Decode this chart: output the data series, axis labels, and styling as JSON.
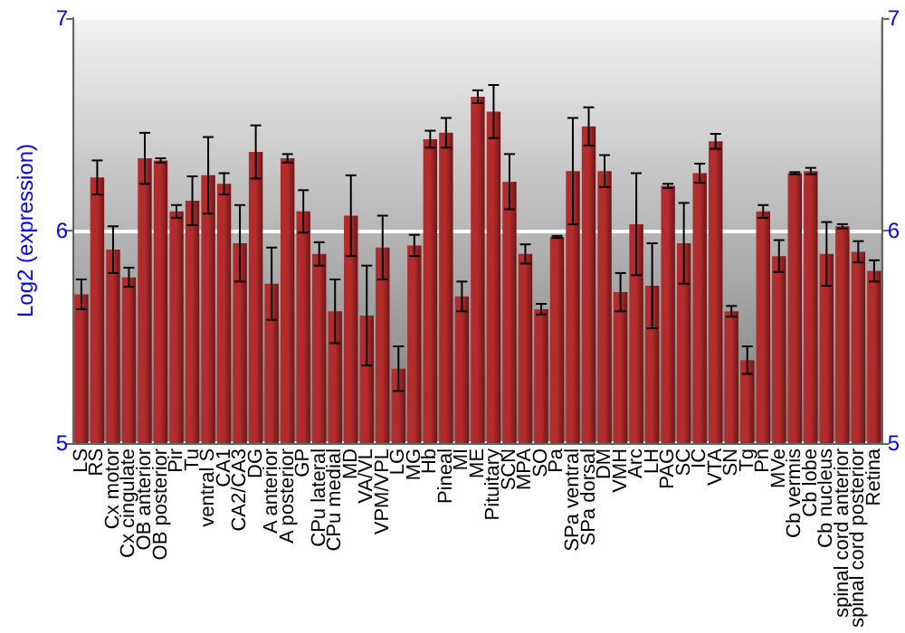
{
  "chart_data": {
    "type": "bar",
    "ylabel": "Log2 (expression)",
    "categories": [
      "LS",
      "RS",
      "Cx motor",
      "Cx cingulate",
      "OB anterior",
      "OB posterior",
      "Pir",
      "Tu",
      "ventral S",
      "CA1",
      "CA2/CA3",
      "DG",
      "A anterior",
      "A posterior",
      "GP",
      "CPu lateral",
      "CPu medial",
      "MD",
      "VA/VL",
      "VPM/VPL",
      "LG",
      "MG",
      "Hb",
      "Pineal",
      "MI",
      "ME",
      "Pituitary",
      "SCN",
      "MPA",
      "SO",
      "Pa",
      "SPa ventral",
      "SPa dorsal",
      "DM",
      "VMH",
      "Arc",
      "LH",
      "PAG",
      "SC",
      "IC",
      "VTA",
      "SN",
      "Tg",
      "Pn",
      "MVe",
      "Cb vermis",
      "Cb lobe",
      "Cb nucleus",
      "spinal cord anterior",
      "spinal cord posterior",
      "Retina"
    ],
    "values": [
      5.7,
      6.25,
      5.91,
      5.78,
      6.34,
      6.33,
      6.09,
      6.14,
      6.26,
      6.22,
      5.94,
      6.37,
      5.75,
      6.34,
      6.09,
      5.89,
      5.62,
      6.07,
      5.6,
      5.92,
      5.35,
      5.93,
      6.43,
      6.46,
      5.69,
      6.63,
      6.56,
      6.23,
      5.89,
      5.63,
      5.97,
      6.28,
      6.49,
      6.28,
      5.71,
      6.03,
      5.74,
      6.21,
      5.94,
      6.27,
      6.42,
      5.62,
      5.39,
      6.09,
      5.88,
      6.27,
      6.28,
      5.89,
      6.02,
      5.9,
      5.81
    ],
    "errors": [
      0.07,
      0.08,
      0.11,
      0.045,
      0.12,
      0.01,
      0.03,
      0.115,
      0.18,
      0.05,
      0.18,
      0.125,
      0.17,
      0.02,
      0.1,
      0.055,
      0.15,
      0.19,
      0.235,
      0.15,
      0.105,
      0.05,
      0.04,
      0.07,
      0.07,
      0.03,
      0.125,
      0.13,
      0.045,
      0.025,
      0.005,
      0.25,
      0.09,
      0.075,
      0.09,
      0.24,
      0.2,
      0.01,
      0.19,
      0.045,
      0.035,
      0.025,
      0.065,
      0.03,
      0.075,
      0.005,
      0.015,
      0.15,
      0.01,
      0.05,
      0.05
    ],
    "color": "#b22c2c",
    "ylim": [
      5,
      7
    ],
    "yticks": [
      5,
      6,
      7
    ],
    "y2lim": [
      5,
      7
    ],
    "y2ticks": [
      5,
      6,
      7
    ],
    "grid": "y"
  }
}
